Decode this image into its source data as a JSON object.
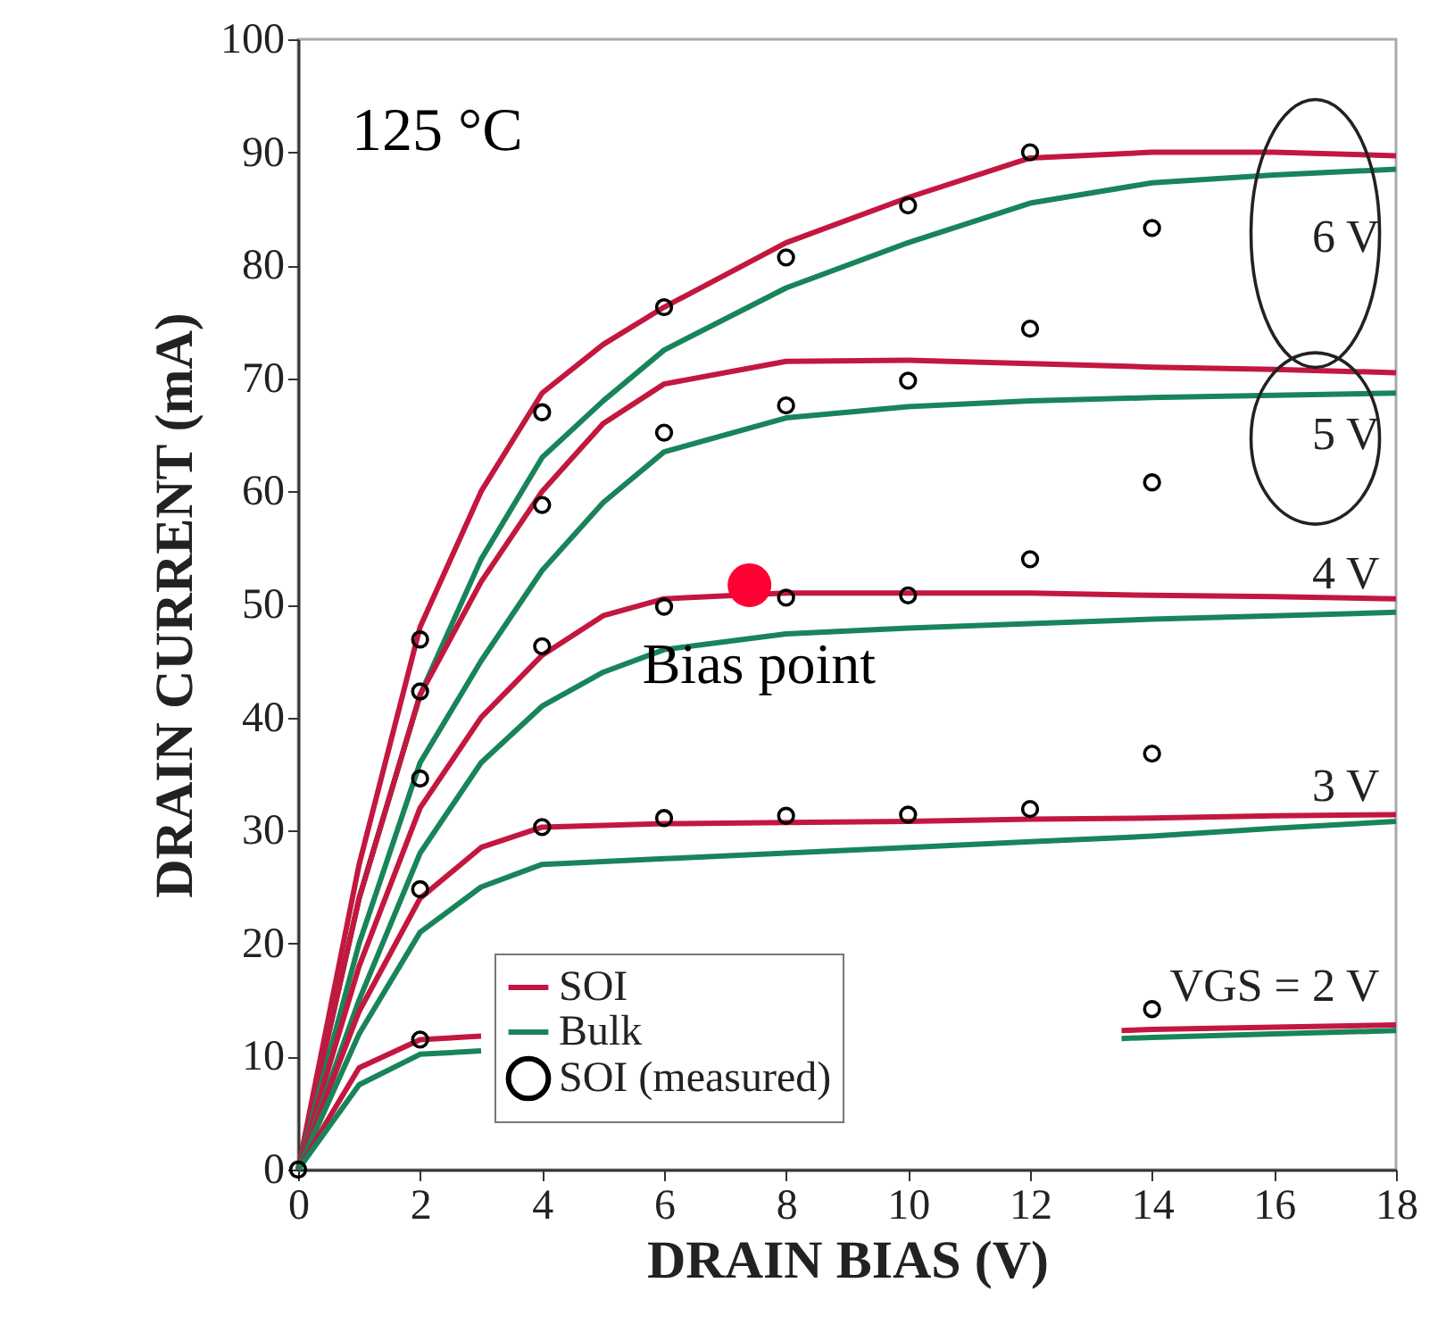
{
  "chart_data": {
    "type": "line",
    "xlabel": "DRAIN BIAS (V)",
    "ylabel": "DRAIN CURRENT (mA)",
    "xlim": [
      0,
      18
    ],
    "ylim": [
      0,
      100
    ],
    "xticks": [
      0,
      2,
      4,
      6,
      8,
      10,
      12,
      14,
      16,
      18
    ],
    "yticks": [
      0,
      10,
      20,
      30,
      40,
      50,
      60,
      70,
      80,
      90,
      100
    ],
    "legend": "bottom",
    "series": [
      {
        "name": "SOI",
        "color": "#c3173f",
        "marker": "none",
        "x": [
          0,
          1,
          2,
          3,
          4,
          5,
          6,
          8,
          10,
          12,
          14,
          16,
          18
        ],
        "values": [
          0,
          27,
          48,
          60,
          68.7,
          73,
          76.3,
          82,
          86,
          89.5,
          90,
          90,
          89.7
        ]
      },
      {
        "name": "Bulk",
        "color": "#18845a",
        "marker": "none",
        "x": [
          0,
          1,
          2,
          3,
          4,
          5,
          6,
          8,
          10,
          12,
          14,
          16,
          18
        ],
        "values": [
          0,
          24,
          42,
          54,
          63,
          68,
          72.5,
          78,
          82,
          85.5,
          87.3,
          88,
          88.5
        ]
      },
      {
        "color": "#c3173f",
        "marker": "none",
        "x": [
          0,
          1,
          2,
          3,
          4,
          5,
          6,
          8,
          10,
          12,
          14,
          16,
          18
        ],
        "values": [
          0,
          24,
          42,
          52,
          60,
          66,
          69.5,
          71.5,
          71.6,
          71.3,
          71,
          70.8,
          70.5
        ]
      },
      {
        "color": "#18845a",
        "marker": "none",
        "x": [
          0,
          1,
          2,
          3,
          4,
          5,
          6,
          8,
          10,
          12,
          14,
          16,
          18
        ],
        "values": [
          0,
          20,
          36,
          45,
          53,
          59,
          63.5,
          66.5,
          67.5,
          68,
          68.3,
          68.5,
          68.7
        ]
      },
      {
        "color": "#c3173f",
        "marker": "none",
        "x": [
          0,
          1,
          2,
          3,
          4,
          5,
          6,
          8,
          10,
          12,
          14,
          16,
          18
        ],
        "values": [
          0,
          18,
          32,
          40,
          45.5,
          49,
          50.5,
          51,
          51,
          51,
          50.8,
          50.7,
          50.5
        ]
      },
      {
        "color": "#18845a",
        "marker": "none",
        "x": [
          0,
          1,
          2,
          3,
          4,
          5,
          6,
          8,
          10,
          12,
          14,
          16,
          18
        ],
        "values": [
          0,
          15,
          28,
          36,
          41,
          44,
          46,
          47.4,
          47.9,
          48.3,
          48.7,
          49,
          49.3
        ]
      },
      {
        "color": "#c3173f",
        "marker": "none",
        "x": [
          0,
          1,
          2,
          3,
          4,
          6,
          8,
          10,
          12,
          14,
          16,
          18
        ],
        "values": [
          0,
          14,
          24,
          28.5,
          30.3,
          30.6,
          30.7,
          30.8,
          31,
          31.1,
          31.3,
          31.4
        ]
      },
      {
        "color": "#18845a",
        "marker": "none",
        "x": [
          0,
          1,
          2,
          3,
          4,
          6,
          8,
          10,
          12,
          14,
          16,
          18
        ],
        "values": [
          0,
          12,
          21,
          25,
          27,
          27.5,
          28,
          28.5,
          29,
          29.5,
          30.2,
          30.8
        ]
      },
      {
        "color": "#c3173f",
        "marker": "none",
        "x": [
          0,
          1,
          2,
          3,
          8,
          13.5,
          14,
          16,
          18
        ],
        "values": [
          0,
          9,
          11.5,
          11.8,
          null,
          12.3,
          12.4,
          12.6,
          12.8
        ]
      },
      {
        "color": "#18845a",
        "marker": "none",
        "x": [
          0,
          1,
          2,
          3,
          8,
          13.5,
          14,
          16,
          18
        ],
        "values": [
          0,
          7.5,
          10.2,
          10.5,
          null,
          11.6,
          11.7,
          12,
          12.3
        ]
      },
      {
        "type": "scatter",
        "name": "SOI (measured)",
        "color": "#000000",
        "marker": "circle",
        "x": [
          0,
          2,
          2,
          2,
          2,
          2,
          4,
          4,
          4,
          4,
          6,
          6,
          6,
          6,
          8,
          8,
          8,
          8,
          10,
          10,
          10,
          10,
          12,
          12,
          12,
          12,
          14,
          14,
          14,
          14
        ],
        "values": [
          0,
          46.9,
          42.3,
          34.6,
          24.8,
          11.5,
          67,
          58.8,
          46.3,
          30.3,
          76.3,
          65.2,
          49.8,
          31.1,
          80.7,
          67.6,
          50.6,
          31.3,
          85.3,
          69.8,
          50.8,
          31.4,
          90,
          74.4,
          54,
          31.9,
          83.3,
          60.8,
          36.8,
          14.2
        ]
      },
      {
        "type": "scatter",
        "color": "#ff0033",
        "marker": "circle",
        "x": [
          7.4
        ],
        "values": [
          51.7
        ]
      }
    ],
    "annotations": [
      "125 °C",
      "6 V",
      "5 V",
      "4 V",
      "3 V",
      "VGS = 2 V",
      {
        "text": "Bias point",
        "x": 7.4,
        "y": 51.7
      }
    ]
  }
}
